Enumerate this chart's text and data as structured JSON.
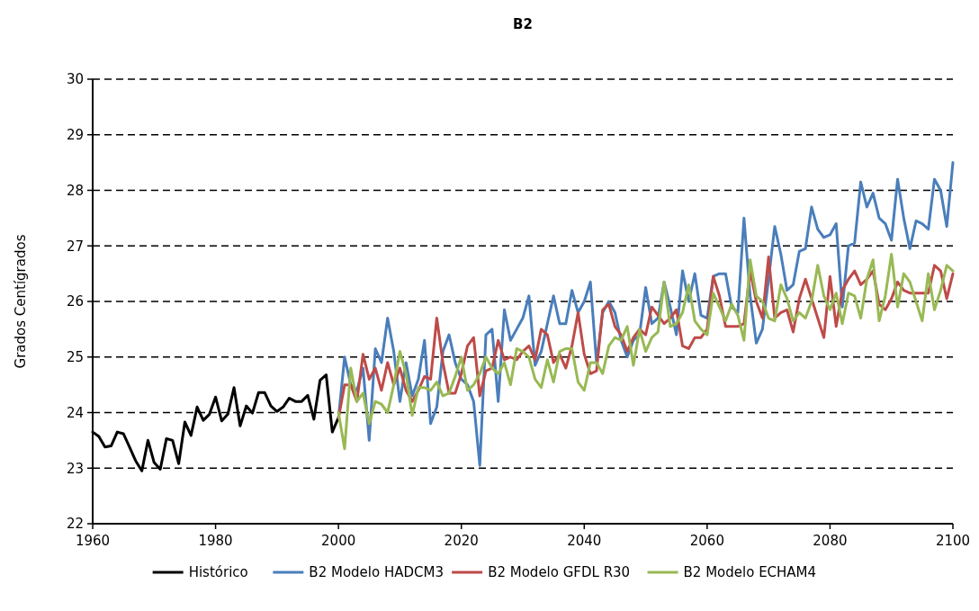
{
  "chart_data": {
    "type": "line",
    "title": "B2",
    "ylabel": "Grados Centígrados",
    "xlim": [
      1960,
      2100
    ],
    "xticks": [
      1960,
      1980,
      2000,
      2020,
      2040,
      2060,
      2080,
      2100
    ],
    "ylim": [
      22,
      30
    ],
    "yticks": [
      22,
      23,
      24,
      25,
      26,
      27,
      28,
      29,
      30
    ],
    "grid": "y",
    "legend": "bottom",
    "line_style": "solid",
    "marker": "none",
    "series": [
      {
        "name": "Histórico",
        "color": "#000000",
        "x": [
          1960,
          1961,
          1962,
          1963,
          1964,
          1965,
          1966,
          1967,
          1968,
          1969,
          1970,
          1971,
          1972,
          1973,
          1974,
          1975,
          1976,
          1977,
          1978,
          1979,
          1980,
          1981,
          1982,
          1983,
          1984,
          1985,
          1986,
          1987,
          1988,
          1989,
          1990,
          1991,
          1992,
          1993,
          1994,
          1995,
          1996,
          1997,
          1998,
          1999,
          2000
        ],
        "values": [
          23.65,
          23.57,
          23.38,
          23.4,
          23.65,
          23.62,
          23.38,
          23.13,
          22.95,
          23.5,
          23.1,
          22.98,
          23.53,
          23.5,
          23.08,
          23.83,
          23.59,
          24.1,
          23.86,
          23.97,
          24.28,
          23.85,
          23.97,
          24.45,
          23.76,
          24.12,
          23.99,
          24.36,
          24.36,
          24.12,
          24.02,
          24.1,
          24.26,
          24.2,
          24.2,
          24.31,
          23.88,
          24.58,
          24.68,
          23.65,
          23.91
        ]
      },
      {
        "name": "B2 Modelo HADCM3",
        "color": "#4a7ebb",
        "x": [
          2000,
          2001,
          2002,
          2003,
          2004,
          2005,
          2006,
          2007,
          2008,
          2009,
          2010,
          2011,
          2012,
          2013,
          2014,
          2015,
          2016,
          2017,
          2018,
          2019,
          2020,
          2021,
          2022,
          2023,
          2024,
          2025,
          2026,
          2027,
          2028,
          2029,
          2030,
          2031,
          2032,
          2033,
          2034,
          2035,
          2036,
          2037,
          2038,
          2039,
          2040,
          2041,
          2042,
          2043,
          2044,
          2045,
          2046,
          2047,
          2048,
          2049,
          2050,
          2051,
          2052,
          2053,
          2054,
          2055,
          2056,
          2057,
          2058,
          2059,
          2060,
          2061,
          2062,
          2063,
          2064,
          2065,
          2066,
          2067,
          2068,
          2069,
          2070,
          2071,
          2072,
          2073,
          2074,
          2075,
          2076,
          2077,
          2078,
          2079,
          2080,
          2081,
          2082,
          2083,
          2084,
          2085,
          2086,
          2087,
          2088,
          2089,
          2090,
          2091,
          2092,
          2093,
          2094,
          2095,
          2096,
          2097,
          2098,
          2099,
          2100
        ],
        "values": [
          23.9,
          25.0,
          24.5,
          24.4,
          24.8,
          23.5,
          25.15,
          24.9,
          25.7,
          25.1,
          24.2,
          24.9,
          24.3,
          24.6,
          25.3,
          23.8,
          24.1,
          25.1,
          25.4,
          24.9,
          24.6,
          24.5,
          24.2,
          23.05,
          25.4,
          25.5,
          24.2,
          25.85,
          25.3,
          25.5,
          25.7,
          26.1,
          24.85,
          25.1,
          25.6,
          26.1,
          25.6,
          25.6,
          26.2,
          25.8,
          26.0,
          26.35,
          24.9,
          25.8,
          26.0,
          25.8,
          25.3,
          25.0,
          25.3,
          25.4,
          26.25,
          25.6,
          25.7,
          26.35,
          25.9,
          25.4,
          26.55,
          26.0,
          26.5,
          25.75,
          25.7,
          26.45,
          26.5,
          26.5,
          25.9,
          25.8,
          27.5,
          26.1,
          25.25,
          25.5,
          26.4,
          27.35,
          26.85,
          26.2,
          26.3,
          26.9,
          26.95,
          27.7,
          27.3,
          27.15,
          27.2,
          27.4,
          25.9,
          27.0,
          27.05,
          28.15,
          27.7,
          27.95,
          27.5,
          27.4,
          27.1,
          28.2,
          27.5,
          26.95,
          27.45,
          27.4,
          27.3,
          28.2,
          28.0,
          27.35,
          28.5
        ]
      },
      {
        "name": "B2 Modelo GFDL R30",
        "color": "#be4b48",
        "x": [
          2000,
          2001,
          2002,
          2003,
          2004,
          2005,
          2006,
          2007,
          2008,
          2009,
          2010,
          2011,
          2012,
          2013,
          2014,
          2015,
          2016,
          2017,
          2018,
          2019,
          2020,
          2021,
          2022,
          2023,
          2024,
          2025,
          2026,
          2027,
          2028,
          2029,
          2030,
          2031,
          2032,
          2033,
          2034,
          2035,
          2036,
          2037,
          2038,
          2039,
          2040,
          2041,
          2042,
          2043,
          2044,
          2045,
          2046,
          2047,
          2048,
          2049,
          2050,
          2051,
          2052,
          2053,
          2054,
          2055,
          2056,
          2057,
          2058,
          2059,
          2060,
          2061,
          2062,
          2063,
          2064,
          2065,
          2066,
          2067,
          2068,
          2069,
          2070,
          2071,
          2072,
          2073,
          2074,
          2075,
          2076,
          2077,
          2078,
          2079,
          2080,
          2081,
          2082,
          2083,
          2084,
          2085,
          2086,
          2087,
          2088,
          2089,
          2090,
          2091,
          2092,
          2093,
          2094,
          2095,
          2096,
          2097,
          2098,
          2099,
          2100
        ],
        "values": [
          23.9,
          24.5,
          24.5,
          24.2,
          25.05,
          24.6,
          24.8,
          24.4,
          24.9,
          24.5,
          24.8,
          24.4,
          24.2,
          24.4,
          24.65,
          24.6,
          25.7,
          24.9,
          24.35,
          24.35,
          24.7,
          25.2,
          25.35,
          24.3,
          24.75,
          24.8,
          25.3,
          24.95,
          25.0,
          24.95,
          25.1,
          25.2,
          24.95,
          25.5,
          25.4,
          24.9,
          25.05,
          24.8,
          25.2,
          25.8,
          25.05,
          24.7,
          24.75,
          25.85,
          25.95,
          25.55,
          25.4,
          25.1,
          25.35,
          25.5,
          25.4,
          25.9,
          25.75,
          25.6,
          25.7,
          25.85,
          25.2,
          25.15,
          25.35,
          25.35,
          25.5,
          26.45,
          26.1,
          25.55,
          25.55,
          25.55,
          25.6,
          26.55,
          26.0,
          25.7,
          26.8,
          25.7,
          25.8,
          25.85,
          25.45,
          26.05,
          26.4,
          26.05,
          25.7,
          25.35,
          26.45,
          25.55,
          26.2,
          26.4,
          26.55,
          26.3,
          26.4,
          26.55,
          25.95,
          25.85,
          26.05,
          26.35,
          26.2,
          26.15,
          26.15,
          26.15,
          26.15,
          26.65,
          26.55,
          26.05,
          26.5
        ]
      },
      {
        "name": "B2 Modelo ECHAM4",
        "color": "#98b954",
        "x": [
          2000,
          2001,
          2002,
          2003,
          2004,
          2005,
          2006,
          2007,
          2008,
          2009,
          2010,
          2011,
          2012,
          2013,
          2014,
          2015,
          2016,
          2017,
          2018,
          2019,
          2020,
          2021,
          2022,
          2023,
          2024,
          2025,
          2026,
          2027,
          2028,
          2029,
          2030,
          2031,
          2032,
          2033,
          2034,
          2035,
          2036,
          2037,
          2038,
          2039,
          2040,
          2041,
          2042,
          2043,
          2044,
          2045,
          2046,
          2047,
          2048,
          2049,
          2050,
          2051,
          2052,
          2053,
          2054,
          2055,
          2056,
          2057,
          2058,
          2059,
          2060,
          2061,
          2062,
          2063,
          2064,
          2065,
          2066,
          2067,
          2068,
          2069,
          2070,
          2071,
          2072,
          2073,
          2074,
          2075,
          2076,
          2077,
          2078,
          2079,
          2080,
          2081,
          2082,
          2083,
          2084,
          2085,
          2086,
          2087,
          2088,
          2089,
          2090,
          2091,
          2092,
          2093,
          2094,
          2095,
          2096,
          2097,
          2098,
          2099,
          2100
        ],
        "values": [
          24.0,
          23.35,
          24.8,
          24.2,
          24.35,
          23.8,
          24.2,
          24.15,
          24.0,
          24.5,
          25.1,
          24.7,
          23.95,
          24.45,
          24.45,
          24.4,
          24.55,
          24.3,
          24.35,
          24.65,
          25.0,
          24.4,
          24.5,
          24.7,
          25.0,
          24.8,
          24.7,
          24.9,
          24.5,
          25.15,
          25.1,
          25.0,
          24.6,
          24.45,
          24.95,
          24.55,
          25.1,
          25.15,
          25.15,
          24.55,
          24.4,
          24.9,
          24.9,
          24.7,
          25.2,
          25.35,
          25.3,
          25.55,
          24.85,
          25.5,
          25.1,
          25.35,
          25.45,
          26.35,
          25.55,
          25.6,
          25.8,
          26.3,
          25.65,
          25.5,
          25.4,
          26.15,
          25.9,
          25.65,
          25.95,
          25.75,
          25.3,
          26.75,
          26.1,
          26.0,
          25.7,
          25.65,
          26.3,
          26.05,
          25.65,
          25.8,
          25.7,
          26.0,
          26.65,
          26.1,
          25.85,
          26.15,
          25.6,
          26.15,
          26.1,
          25.7,
          26.4,
          26.75,
          25.65,
          26.1,
          26.85,
          25.9,
          26.5,
          26.35,
          26.0,
          25.65,
          26.5,
          25.85,
          26.2,
          26.65,
          26.55
        ]
      }
    ]
  }
}
